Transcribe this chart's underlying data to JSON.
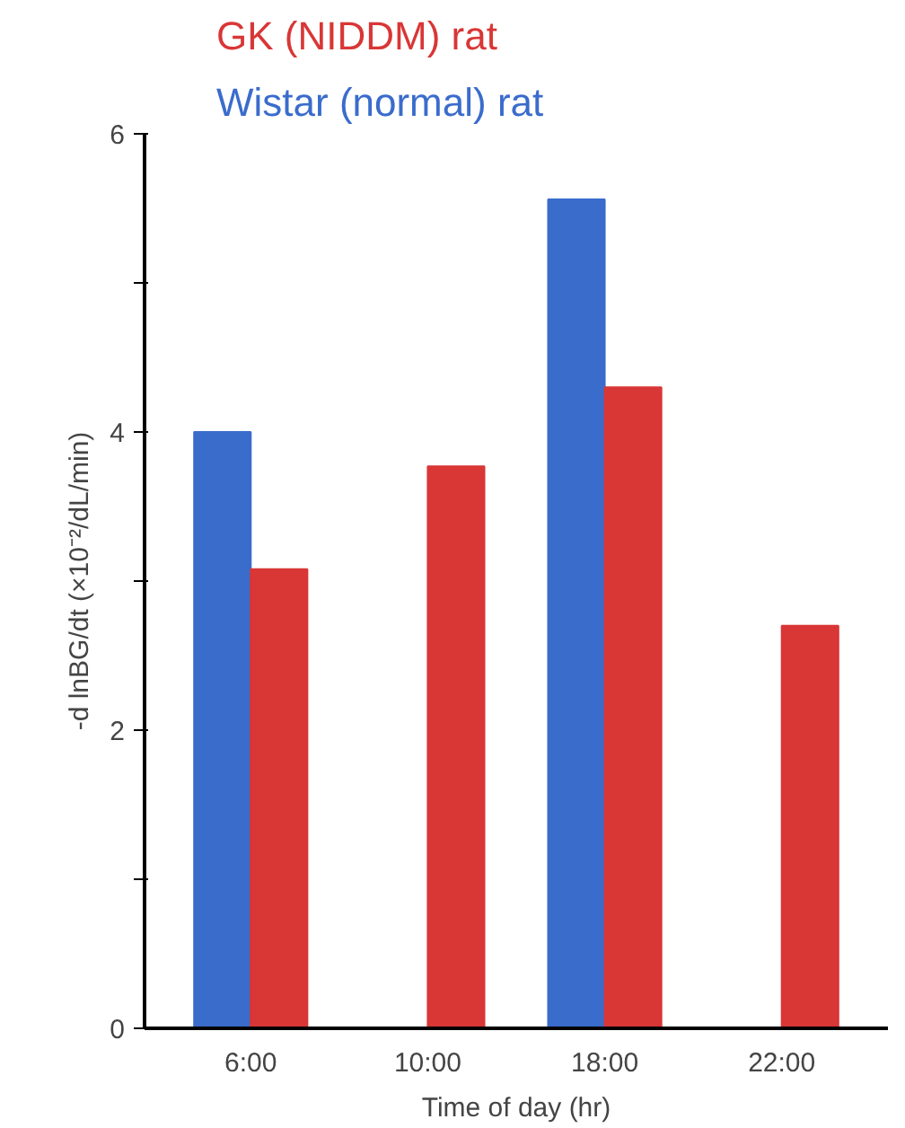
{
  "chart_data": {
    "type": "bar",
    "categories": [
      "6:00",
      "10:00",
      "18:00",
      "22:00"
    ],
    "series": [
      {
        "name": "Wistar (normal) rat",
        "color": "#3a6ccc",
        "values": [
          4.0,
          null,
          5.56,
          null
        ]
      },
      {
        "name": "GK (NIDDM) rat",
        "color": "#d93636",
        "values": [
          3.08,
          3.77,
          4.3,
          2.7
        ]
      }
    ],
    "xlabel": "Time of day (hr)",
    "ylabel": "-d lnBG/dt (×10⁻²/dL/min)",
    "ylim": [
      0,
      6
    ],
    "yticks": [
      0,
      {
        "value": 1,
        "label": null
      },
      2,
      {
        "value": 3,
        "label": null
      },
      4,
      {
        "value": 5,
        "label": null
      },
      6
    ],
    "legend": "top",
    "grid": false
  }
}
